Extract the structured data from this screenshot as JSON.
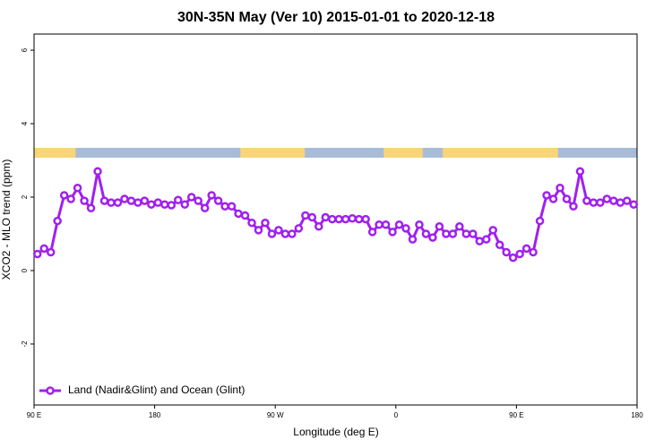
{
  "chart_data": {
    "type": "line",
    "title": "30N-35N May (Ver 10)   2015-01-01 to 2020-12-18",
    "x_label": "Longitude (deg E)",
    "y_label": "XCO2 - MLO trend (ppm)",
    "x": [
      92.5,
      97.5,
      102.5,
      107.5,
      112.5,
      117.5,
      122.5,
      127.5,
      132.5,
      137.5,
      142.5,
      147.5,
      152.5,
      157.5,
      162.5,
      167.5,
      172.5,
      177.5,
      182.5,
      187.5,
      192.5,
      197.5,
      202.5,
      207.5,
      212.5,
      217.5,
      222.5,
      227.5,
      232.5,
      237.5,
      242.5,
      247.5,
      252.5,
      257.5,
      262.5,
      267.5,
      272.5,
      277.5,
      282.5,
      287.5,
      292.5,
      297.5,
      302.5,
      307.5,
      312.5,
      317.5,
      322.5,
      327.5,
      332.5,
      337.5,
      342.5,
      347.5,
      352.5,
      357.5,
      362.5,
      367.5,
      372.5,
      377.5,
      382.5,
      387.5,
      392.5,
      397.5,
      402.5,
      407.5,
      412.5,
      417.5,
      422.5,
      427.5,
      432.5,
      437.5,
      442.5,
      447.5,
      452.5,
      457.5,
      462.5,
      467.5,
      472.5,
      477.5,
      482.5,
      487.5,
      492.5,
      497.5,
      502.5,
      507.5,
      512.5,
      517.5,
      522.5,
      527.5,
      532.5,
      537.5
    ],
    "series": [
      {
        "name": "Land (Nadir&Glint) and Ocean (Glint)",
        "color": "#a020f0",
        "values": [
          0.45,
          0.6,
          0.5,
          1.35,
          2.05,
          1.95,
          2.25,
          1.9,
          1.7,
          2.7,
          1.9,
          1.85,
          1.85,
          1.95,
          1.9,
          1.85,
          1.9,
          1.8,
          1.85,
          1.8,
          1.78,
          1.92,
          1.8,
          2.0,
          1.9,
          1.7,
          2.05,
          1.9,
          1.75,
          1.75,
          1.55,
          1.5,
          1.3,
          1.1,
          1.3,
          1.0,
          1.1,
          1.0,
          1.0,
          1.15,
          1.5,
          1.45,
          1.2,
          1.45,
          1.4,
          1.4,
          1.4,
          1.42,
          1.4,
          1.4,
          1.05,
          1.25,
          1.25,
          1.05,
          1.25,
          1.15,
          0.85,
          1.25,
          1.0,
          0.9,
          1.2,
          1.0,
          1.0,
          1.2,
          1.0,
          1.0,
          0.8,
          0.85,
          1.1,
          0.7,
          0.5,
          0.35,
          0.45,
          0.6,
          0.5,
          1.35,
          2.05,
          1.95,
          2.25,
          1.95,
          1.75,
          2.7,
          1.9,
          1.85,
          1.85,
          1.95,
          1.9,
          1.85,
          1.9,
          1.8
        ]
      }
    ],
    "land_segments": [
      [
        90,
        121
      ],
      [
        244,
        292
      ],
      [
        351,
        380
      ],
      [
        395,
        481
      ]
    ],
    "land_color": "#f8d678",
    "ocean_color": "#a8bcd8",
    "xlim": [
      90,
      540
    ],
    "xticks": [
      {
        "value": 90,
        "label": "90 E"
      },
      180,
      {
        "value": 270,
        "label": "90 W"
      },
      {
        "value": 360,
        "label": "0"
      },
      {
        "value": 450,
        "label": "90 E"
      },
      {
        "value": 540,
        "label": "180"
      }
    ],
    "ylim": [
      -3.66,
      6.44
    ],
    "yticks": [
      -2,
      0,
      2,
      4,
      6
    ],
    "legend": "bottom-left"
  }
}
